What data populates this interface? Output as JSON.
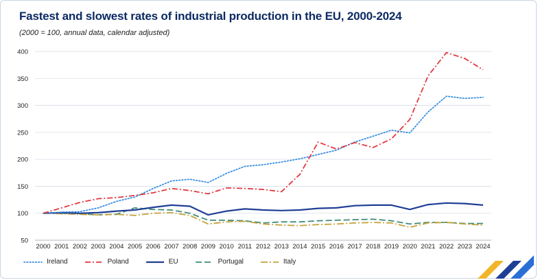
{
  "title": "Fastest and slowest rates of industrial production in the EU, 2000-2024",
  "subtitle": "(2000 = 100, annual data, calendar adjusted)",
  "colors": {
    "Ireland": "#3b8fe0",
    "Poland": "#e2383f",
    "EU": "#1f3f95",
    "Portugal": "#3f8c7a",
    "Italy": "#c6a23a"
  },
  "chart_data": {
    "type": "line",
    "x": [
      "2000",
      "2001",
      "2002",
      "2003",
      "2004",
      "2005",
      "2006",
      "2007",
      "2008",
      "2009",
      "2010",
      "2011",
      "2012",
      "2013",
      "2014",
      "2015",
      "2016",
      "2017",
      "2018",
      "2019",
      "2020",
      "2021",
      "2022",
      "2023",
      "2024"
    ],
    "ylim": [
      50,
      400
    ],
    "yticks": [
      50,
      100,
      150,
      200,
      250,
      300,
      350,
      400
    ],
    "grid": true,
    "legend_position": "bottom-left",
    "series": [
      {
        "name": "Ireland",
        "style": "dotted",
        "values": [
          100,
          102,
          103,
          110,
          122,
          130,
          146,
          160,
          163,
          157,
          174,
          187,
          190,
          195,
          201,
          209,
          217,
          232,
          243,
          254,
          249,
          288,
          317,
          313,
          315
        ]
      },
      {
        "name": "Poland",
        "style": "dash-dot",
        "values": [
          100,
          110,
          120,
          127,
          129,
          133,
          138,
          146,
          142,
          136,
          147,
          146,
          144,
          140,
          172,
          232,
          219,
          231,
          222,
          238,
          274,
          355,
          398,
          387,
          366
        ]
      },
      {
        "name": "EU",
        "style": "solid",
        "values": [
          100,
          101,
          100,
          101,
          104,
          106,
          111,
          115,
          113,
          97,
          104,
          108,
          106,
          105,
          106,
          109,
          110,
          114,
          115,
          115,
          107,
          116,
          119,
          118,
          115
        ]
      },
      {
        "name": "Portugal",
        "style": "dashed",
        "values": [
          100,
          100,
          99,
          97,
          98,
          110,
          107,
          106,
          100,
          87,
          87,
          86,
          82,
          84,
          84,
          86,
          87,
          88,
          89,
          86,
          80,
          83,
          83,
          81,
          81
        ]
      },
      {
        "name": "Italy",
        "style": "long-dash-dot",
        "values": [
          100,
          99,
          98,
          97,
          98,
          96,
          100,
          101,
          96,
          80,
          84,
          85,
          80,
          78,
          77,
          79,
          80,
          82,
          83,
          82,
          74,
          82,
          83,
          80,
          78
        ]
      }
    ]
  }
}
